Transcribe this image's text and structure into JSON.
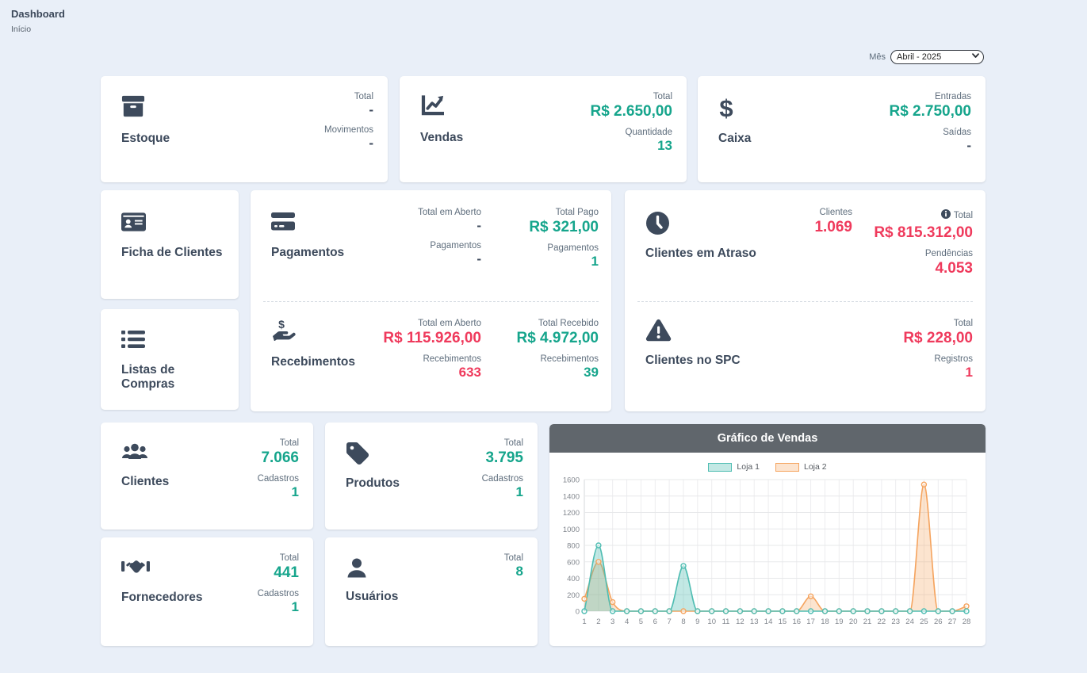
{
  "page": {
    "title": "Dashboard",
    "breadcrumb": "Início"
  },
  "filters": {
    "month_label": "Mês",
    "month_value": "Abril - 2025"
  },
  "colors": {
    "teal": "#16a58c",
    "red": "#ef3a5c",
    "dark": "#3d4a5c",
    "background": "#e9eff8",
    "chart_header": "#60666c",
    "loja1_line": "#4fbdb2",
    "loja2_line": "#f5a45f"
  },
  "cards": {
    "estoque": {
      "title": "Estoque",
      "stats": [
        {
          "label": "Total",
          "value": "-"
        },
        {
          "label": "Movimentos",
          "value": "-"
        }
      ]
    },
    "vendas": {
      "title": "Vendas",
      "stats": [
        {
          "label": "Total",
          "value": "R$ 2.650,00"
        },
        {
          "label": "Quantidade",
          "value": "13"
        }
      ]
    },
    "caixa": {
      "title": "Caixa",
      "stats": [
        {
          "label": "Entradas",
          "value": "R$ 2.750,00"
        },
        {
          "label": "Saídas",
          "value": "-"
        }
      ]
    },
    "ficha_clientes": {
      "title": "Ficha de Clientes"
    },
    "listas_compras": {
      "title": "Listas de Compras"
    },
    "pagamentos": {
      "title": "Pagamentos",
      "col_a": [
        {
          "label": "Total em Aberto",
          "value": "-"
        },
        {
          "label": "Pagamentos",
          "value": "-"
        }
      ],
      "col_b": [
        {
          "label": "Total Pago",
          "value": "R$ 321,00"
        },
        {
          "label": "Pagamentos",
          "value": "1"
        }
      ]
    },
    "recebimentos": {
      "title": "Recebimentos",
      "col_a": [
        {
          "label": "Total em Aberto",
          "value": "R$ 115.926,00"
        },
        {
          "label": "Recebimentos",
          "value": "633"
        }
      ],
      "col_b": [
        {
          "label": "Total Recebido",
          "value": "R$ 4.972,00"
        },
        {
          "label": "Recebimentos",
          "value": "39"
        }
      ]
    },
    "clientes_atraso": {
      "title": "Clientes em Atraso",
      "col_a": [
        {
          "label": "Clientes",
          "value": "1.069"
        }
      ],
      "col_b": [
        {
          "label": "Total",
          "value": "R$ 815.312,00"
        },
        {
          "label": "Pendências",
          "value": "4.053"
        }
      ]
    },
    "clientes_spc": {
      "title": "Clientes no SPC",
      "col_b": [
        {
          "label": "Total",
          "value": "R$ 228,00"
        },
        {
          "label": "Registros",
          "value": "1"
        }
      ]
    },
    "clientes": {
      "title": "Clientes",
      "stats": [
        {
          "label": "Total",
          "value": "7.066"
        },
        {
          "label": "Cadastros",
          "value": "1"
        }
      ]
    },
    "produtos": {
      "title": "Produtos",
      "stats": [
        {
          "label": "Total",
          "value": "3.795"
        },
        {
          "label": "Cadastros",
          "value": "1"
        }
      ]
    },
    "fornecedores": {
      "title": "Fornecedores",
      "stats": [
        {
          "label": "Total",
          "value": "441"
        },
        {
          "label": "Cadastros",
          "value": "1"
        }
      ]
    },
    "usuarios": {
      "title": "Usuários",
      "stats": [
        {
          "label": "Total",
          "value": "8"
        }
      ]
    }
  },
  "chart_data": {
    "type": "area",
    "title": "Gráfico de Vendas",
    "x": [
      1,
      2,
      3,
      4,
      5,
      6,
      7,
      8,
      9,
      10,
      11,
      12,
      13,
      14,
      15,
      16,
      17,
      18,
      19,
      20,
      21,
      22,
      23,
      24,
      25,
      26,
      27,
      28
    ],
    "series": [
      {
        "name": "Loja 1",
        "color": "#4fbdb2",
        "fill": "rgba(79,189,178,0.35)",
        "values": [
          0,
          800,
          0,
          0,
          0,
          0,
          0,
          550,
          0,
          0,
          0,
          0,
          0,
          0,
          0,
          0,
          0,
          0,
          0,
          0,
          0,
          0,
          0,
          0,
          0,
          0,
          0,
          0
        ]
      },
      {
        "name": "Loja 2",
        "color": "#f5a45f",
        "fill": "rgba(245,164,95,0.30)",
        "values": [
          150,
          600,
          110,
          0,
          0,
          0,
          0,
          0,
          0,
          0,
          0,
          0,
          0,
          0,
          0,
          0,
          180,
          0,
          0,
          0,
          0,
          0,
          0,
          0,
          1540,
          0,
          0,
          60
        ]
      }
    ],
    "xlabel": "",
    "ylabel": "",
    "ylim": [
      0,
      1600
    ],
    "ytick_step": 200,
    "grid": true,
    "legend_position": "top"
  }
}
